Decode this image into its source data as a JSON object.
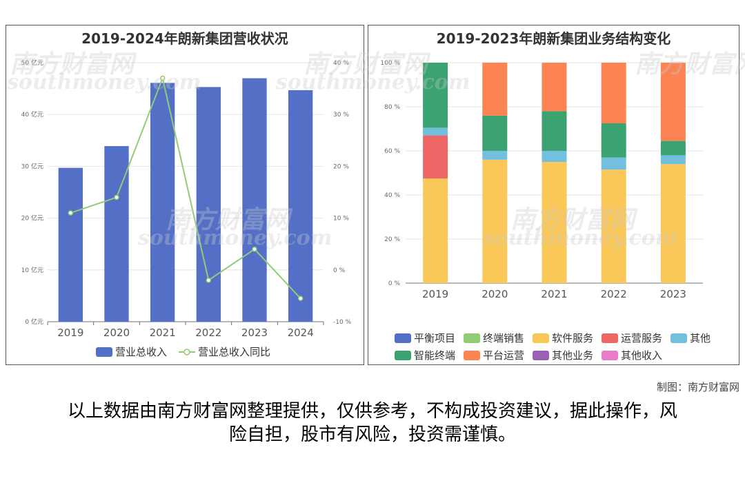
{
  "watermark": {
    "cn": "南方财富网",
    "en": "southmoney.com"
  },
  "credit": "制图：南方财富网",
  "disclaimer": {
    "line1": "以上数据由南方财富网整理提供，仅供参考，不构成投资建议，据此操作，风",
    "line2": "险自担，股市有风险，投资需谨慎。"
  },
  "chart_data": [
    {
      "type": "bar",
      "title": "2019-2024年朗新集团营收状况",
      "categories": [
        "2019",
        "2020",
        "2021",
        "2022",
        "2023",
        "2024"
      ],
      "series": [
        {
          "name": "营业总收入",
          "type": "bar",
          "axis": "left",
          "color": "#5470c6",
          "values": [
            29.7,
            33.9,
            46.1,
            45.3,
            47.0,
            44.7
          ]
        },
        {
          "name": "营业总收入同比",
          "type": "line",
          "axis": "right",
          "color": "#91cc75",
          "values": [
            11.0,
            14.0,
            37.0,
            -2.0,
            4.0,
            -5.5
          ]
        }
      ],
      "y_left": {
        "ticks": [
          "0 亿元",
          "10 亿元",
          "20 亿元",
          "30 亿元",
          "40 亿元",
          "50 亿元"
        ],
        "ylim": [
          0,
          50
        ]
      },
      "y_right": {
        "ticks": [
          "-10 %",
          "0 %",
          "10 %",
          "20 %",
          "30 %",
          "40 %"
        ],
        "ylim": [
          -10,
          40
        ]
      },
      "grid": true,
      "legend_position": "bottom"
    },
    {
      "type": "bar",
      "stacked": true,
      "title": "2019-2023年朗新集团业务结构变化",
      "categories": [
        "2019",
        "2020",
        "2021",
        "2022",
        "2023"
      ],
      "series": [
        {
          "name": "平衡项目",
          "color": "#5470c6",
          "values": [
            0,
            0,
            0,
            0,
            0
          ]
        },
        {
          "name": "终端销售",
          "color": "#91cc75",
          "values": [
            0,
            0,
            0,
            0,
            0
          ]
        },
        {
          "name": "软件服务",
          "color": "#fac858",
          "values": [
            47.5,
            56.0,
            55.0,
            51.5,
            54.0
          ]
        },
        {
          "name": "运营服务",
          "color": "#ee6666",
          "values": [
            19.5,
            0,
            0,
            0,
            0
          ]
        },
        {
          "name": "其他",
          "color": "#73c0de",
          "values": [
            3.5,
            4.0,
            5.0,
            5.5,
            4.0
          ]
        },
        {
          "name": "智能终端",
          "color": "#3ba272",
          "values": [
            29.5,
            16.0,
            18.0,
            15.5,
            6.5
          ]
        },
        {
          "name": "平台运营",
          "color": "#fc8452",
          "values": [
            0,
            24.0,
            22.0,
            27.5,
            35.5
          ]
        },
        {
          "name": "其他业务",
          "color": "#9a60b4",
          "values": [
            0,
            0,
            0,
            0,
            0
          ]
        },
        {
          "name": "其他收入",
          "color": "#ea7ccc",
          "values": [
            0,
            0,
            0,
            0,
            0
          ]
        }
      ],
      "y": {
        "ticks": [
          "0 %",
          "20 %",
          "40 %",
          "60 %",
          "80 %",
          "100 %"
        ],
        "ylim": [
          0,
          100
        ]
      },
      "grid": true,
      "legend_position": "bottom"
    }
  ]
}
